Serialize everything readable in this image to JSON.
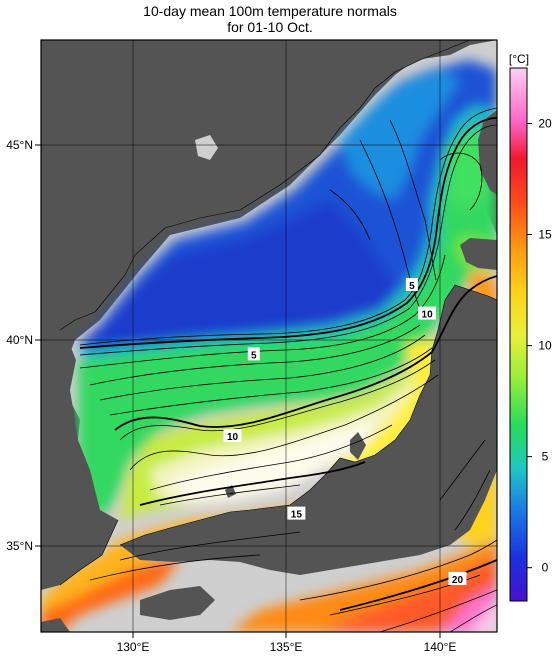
{
  "title": {
    "line1": "10-day mean 100m temperature normals",
    "line2": "for 01-10 Oct."
  },
  "axes": {
    "x_ticks": [
      "130°E",
      "135°E",
      "140°E"
    ],
    "y_ticks": [
      "45°N",
      "40°N",
      "35°N"
    ],
    "lon_range": [
      127,
      142
    ],
    "lat_range": [
      33,
      47.5
    ]
  },
  "colorbar": {
    "unit": "[°C]",
    "ticks": [
      "0",
      "5",
      "10",
      "15",
      "20"
    ],
    "range": [
      -1.5,
      22.5
    ]
  },
  "contour_labels": [
    {
      "text": "5",
      "lon": 134.0,
      "lat": 39.8
    },
    {
      "text": "10",
      "lon": 133.3,
      "lat": 37.8
    },
    {
      "text": "15",
      "lon": 135.4,
      "lat": 35.9
    },
    {
      "text": "5",
      "lon": 139.2,
      "lat": 41.5
    },
    {
      "text": "10",
      "lon": 139.7,
      "lat": 40.8
    },
    {
      "text": "20",
      "lon": 140.7,
      "lat": 34.3
    }
  ],
  "colors": {
    "land": "#545454",
    "shelf": "#cfcfcf",
    "frame": "#000000"
  }
}
